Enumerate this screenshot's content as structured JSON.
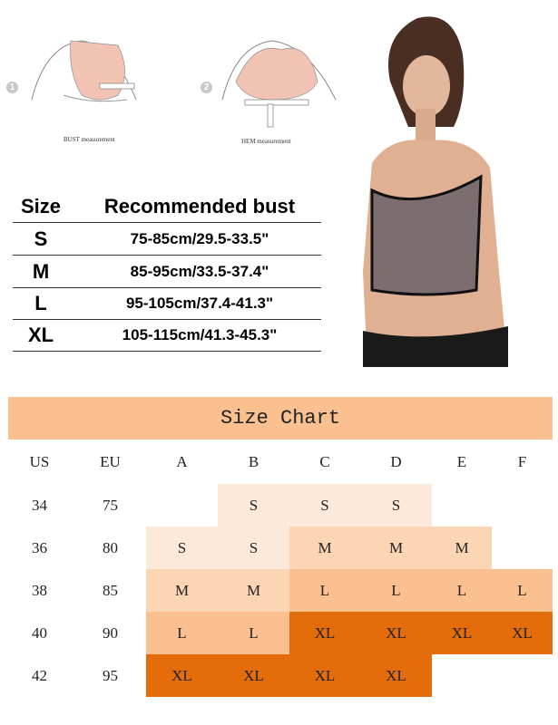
{
  "illustrations": [
    {
      "number": "1",
      "caption": "BUST measurement"
    },
    {
      "number": "2",
      "caption": "HEM measurement"
    }
  ],
  "size_table": {
    "headers": [
      "Size",
      "Recommended bust"
    ],
    "rows": [
      [
        "S",
        "75-85cm/29.5-33.5\""
      ],
      [
        "M",
        "85-95cm/33.5-37.4\""
      ],
      [
        "L",
        "95-105cm/37.4-41.3\""
      ],
      [
        "XL",
        "105-115cm/41.3-45.3\""
      ]
    ]
  },
  "size_chart": {
    "title": "Size Chart",
    "headers": [
      "US",
      "EU",
      "A",
      "B",
      "C",
      "D",
      "E",
      "F"
    ],
    "rows": [
      [
        "34",
        "75",
        "",
        "S",
        "S",
        "S",
        "",
        ""
      ],
      [
        "36",
        "80",
        "S",
        "S",
        "M",
        "M",
        "M",
        ""
      ],
      [
        "38",
        "85",
        "M",
        "M",
        "L",
        "L",
        "L",
        "L"
      ],
      [
        "40",
        "90",
        "L",
        "L",
        "XL",
        "XL",
        "XL",
        "XL"
      ],
      [
        "42",
        "95",
        "XL",
        "XL",
        "XL",
        "XL",
        "",
        ""
      ]
    ],
    "colors": {
      "S": "#fde9d9",
      "M": "#fcd5b4",
      "L": "#fac090",
      "XL": "#e46c0a",
      "title": "#fac090"
    }
  }
}
